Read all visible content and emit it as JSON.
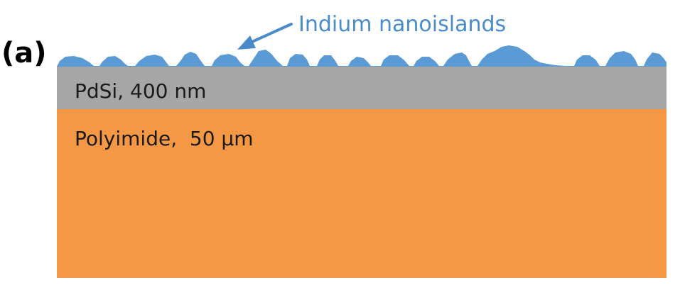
{
  "panel_label": "(a)",
  "annotation": {
    "text": "Indium nanoislands",
    "color": "#4a8cc9"
  },
  "layers": [
    {
      "key": "pdsi",
      "label": "PdSi, 400 nm",
      "color": "#a6a6a6"
    },
    {
      "key": "polyimide",
      "label": "Polyimide,  50 μm",
      "color": "#f59845"
    }
  ],
  "nanoislands_color": "#5b9bd5"
}
